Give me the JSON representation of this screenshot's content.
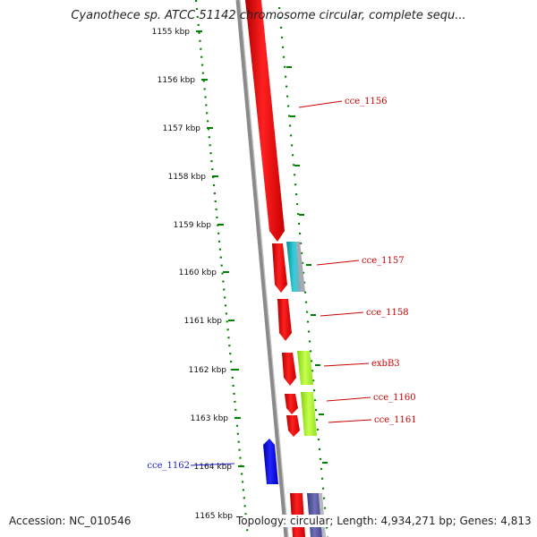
{
  "title": "Cyanothece sp. ATCC 51142 chromosome circular, complete sequ...",
  "colors": {
    "forward_gene": "#ff0000",
    "reverse_gene": "#0000ee",
    "backbone": "#8a8a8a",
    "ruler_dots": "#008000",
    "label_forward": "#cc0000",
    "label_reverse": "#1c1cc8",
    "feature_cyan": "#18b4c0",
    "feature_lime": "#a8f020",
    "feature_slate": "#5a5a9a"
  },
  "ruler": {
    "ticks": [
      "1155 kbp",
      "1156 kbp",
      "1157 kbp",
      "1158 kbp",
      "1159 kbp",
      "1160 kbp",
      "1161 kbp",
      "1162 kbp",
      "1163 kbp",
      "1164 kbp",
      "1165 kbp"
    ]
  },
  "genes": [
    {
      "name": "cce_1156",
      "strand": "forward",
      "color_key": "label_forward"
    },
    {
      "name": "cce_1157",
      "strand": "forward",
      "color_key": "label_forward"
    },
    {
      "name": "cce_1158",
      "strand": "forward",
      "color_key": "label_forward"
    },
    {
      "name": "exbB3",
      "strand": "forward",
      "color_key": "label_forward"
    },
    {
      "name": "cce_1160",
      "strand": "forward",
      "color_key": "label_forward"
    },
    {
      "name": "cce_1161",
      "strand": "forward",
      "color_key": "label_forward"
    },
    {
      "name": "cce_1162",
      "strand": "reverse",
      "color_key": "label_reverse"
    }
  ],
  "footer": {
    "accession": "Accession: NC_010546",
    "summary": "Topology: circular; Length: 4,934,271 bp; Genes: 4,813"
  }
}
